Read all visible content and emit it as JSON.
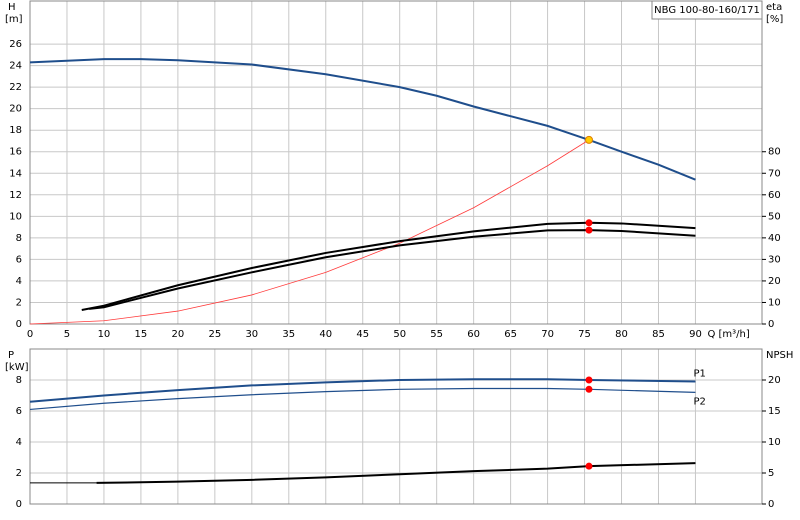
{
  "chart_data": [
    {
      "type": "line",
      "title": "NBG 100-80-160/171",
      "ylabel": "H",
      "yunit": "[m]",
      "y2label": "eta",
      "y2unit": "[%]",
      "xlabel": "Q [m³/h]",
      "xlim": [
        0,
        99
      ],
      "xticks": [
        0,
        5,
        10,
        15,
        20,
        25,
        30,
        35,
        40,
        45,
        50,
        55,
        60,
        65,
        70,
        75,
        80,
        85,
        90
      ],
      "ylim": [
        0,
        30
      ],
      "yticks": [
        0,
        2,
        4,
        6,
        8,
        10,
        12,
        14,
        16,
        18,
        20,
        22,
        24,
        26
      ],
      "y2lim": [
        0,
        150
      ],
      "y2ticks": [
        0,
        10,
        20,
        30,
        40,
        50,
        60,
        70,
        80
      ],
      "grid": true,
      "series": [
        {
          "color": "#1f4e8c",
          "width": 2,
          "axis": "y",
          "x": [
            0,
            10,
            15,
            20,
            30,
            40,
            50,
            55,
            60,
            65,
            70,
            75.6,
            80,
            85,
            90
          ],
          "values": [
            24.3,
            24.6,
            24.6,
            24.5,
            24.1,
            23.2,
            22.0,
            21.2,
            20.2,
            19.3,
            18.4,
            17.1,
            16.0,
            14.8,
            13.4
          ]
        },
        {
          "color": "#ff3b3b",
          "width": 0.8,
          "axis": "y",
          "x": [
            0,
            10,
            20,
            30,
            40,
            50,
            60,
            70,
            75.6
          ],
          "values": [
            0,
            0.3,
            1.2,
            2.7,
            4.8,
            7.5,
            10.8,
            14.7,
            17.1
          ]
        },
        {
          "color": "#000000",
          "width": 2,
          "axis": "y2",
          "x": [
            7,
            10,
            20,
            30,
            40,
            50,
            60,
            70,
            75.6,
            80,
            90
          ],
          "values": [
            6.5,
            8.5,
            18,
            26,
            33,
            38.5,
            43,
            46.5,
            47,
            46.7,
            44.5
          ]
        },
        {
          "color": "#000000",
          "width": 2,
          "axis": "y2",
          "x": [
            8,
            10,
            20,
            30,
            40,
            50,
            60,
            70,
            75.6,
            80,
            90
          ],
          "values": [
            7,
            7.8,
            16.5,
            24,
            31,
            36.5,
            40.5,
            43.5,
            43.6,
            43.2,
            41
          ]
        }
      ],
      "points": [
        {
          "color": "#ffcc00",
          "axis": "y",
          "x": 75.6,
          "value": 17.1
        },
        {
          "color": "#ff0000",
          "axis": "y2",
          "x": 75.6,
          "value": 47
        },
        {
          "color": "#ff0000",
          "axis": "y2",
          "x": 75.6,
          "value": 43.6
        }
      ]
    },
    {
      "type": "line",
      "ylabel": "P",
      "yunit": "[kW]",
      "y2label": "NPSH",
      "xlim": [
        0,
        99
      ],
      "xticks": [
        0,
        5,
        10,
        15,
        20,
        25,
        30,
        35,
        40,
        45,
        50,
        55,
        60,
        65,
        70,
        75,
        80,
        85,
        90
      ],
      "ylim": [
        0,
        10
      ],
      "yticks": [
        0,
        2,
        4,
        6,
        8
      ],
      "y2lim": [
        0,
        25
      ],
      "y2ticks": [
        0,
        5,
        10,
        15,
        20
      ],
      "grid": true,
      "series": [
        {
          "name": "P1",
          "color": "#1f4e8c",
          "width": 2,
          "axis": "y",
          "x": [
            0,
            10,
            20,
            30,
            40,
            50,
            60,
            70,
            75.6,
            90
          ],
          "values": [
            6.6,
            7.0,
            7.35,
            7.65,
            7.85,
            8.0,
            8.05,
            8.05,
            8.0,
            7.9
          ]
        },
        {
          "name": "P2",
          "color": "#1f4e8c",
          "width": 1.2,
          "axis": "y",
          "x": [
            0,
            10,
            20,
            30,
            40,
            50,
            60,
            70,
            75.6,
            90
          ],
          "values": [
            6.1,
            6.5,
            6.8,
            7.05,
            7.25,
            7.4,
            7.45,
            7.45,
            7.4,
            7.2
          ]
        },
        {
          "color": "#000000",
          "width": 1,
          "axis": "y2",
          "x": [
            0,
            9
          ],
          "values": [
            3.4,
            3.4
          ]
        },
        {
          "color": "#000000",
          "width": 2,
          "axis": "y2",
          "x": [
            9,
            20,
            30,
            40,
            50,
            60,
            70,
            75.6,
            90
          ],
          "values": [
            3.4,
            3.6,
            3.9,
            4.3,
            4.8,
            5.3,
            5.7,
            6.1,
            6.6
          ]
        }
      ],
      "points": [
        {
          "color": "#ff0000",
          "axis": "y",
          "x": 75.6,
          "value": 8.0
        },
        {
          "color": "#ff0000",
          "axis": "y",
          "x": 75.6,
          "value": 7.4
        },
        {
          "color": "#ff0000",
          "axis": "y2",
          "x": 75.6,
          "value": 6.1
        }
      ]
    }
  ]
}
